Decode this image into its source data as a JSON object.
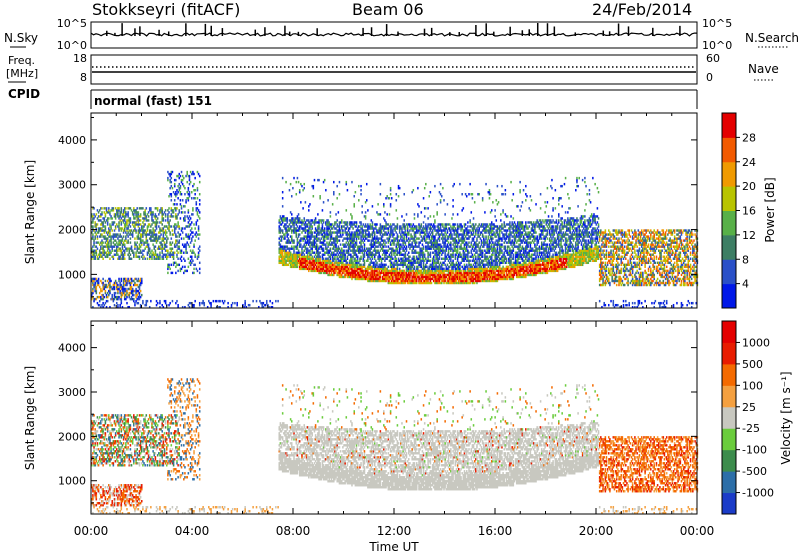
{
  "header": {
    "station": "Stokkseyri (fitACF)",
    "beam": "Beam 06",
    "date": "24/Feb/2014"
  },
  "strip_labels": {
    "nsky": "N.Sky",
    "nsearch": "N.Search",
    "freq_line1": "Freq.",
    "freq_line2": "[MHz]",
    "nave": "Nave",
    "cpid": "CPID",
    "cpid_value": "normal (fast) 151",
    "nsky_ticks": [
      "10^5",
      "10^0"
    ],
    "nsearch_ticks": [
      "10^5",
      "10^0"
    ],
    "freq_ticks": [
      "18",
      "8"
    ],
    "nave_ticks": [
      "60",
      "0"
    ]
  },
  "chart_data": [
    {
      "name": "power",
      "type": "heatmap",
      "ylabel": "Slant Range [km]",
      "ylim": [
        250,
        4600
      ],
      "yticks": [
        1000,
        2000,
        3000,
        4000
      ],
      "xlim": [
        0,
        24
      ],
      "colorbar": {
        "label": "Power [dB]",
        "ticks": [
          4,
          8,
          12,
          16,
          20,
          24,
          28
        ],
        "colors": [
          "#0018e8",
          "#2a50c8",
          "#3d7e64",
          "#58b048",
          "#b8c400",
          "#f09a00",
          "#f25a00",
          "#e40000"
        ]
      }
    },
    {
      "name": "velocity",
      "type": "heatmap",
      "ylabel": "Slant Range [km]",
      "ylim": [
        250,
        4600
      ],
      "yticks": [
        1000,
        2000,
        3000,
        4000
      ],
      "xlim": [
        0,
        24
      ],
      "xlabel": "Time UT",
      "xticks": [
        "00:00",
        "04:00",
        "08:00",
        "12:00",
        "16:00",
        "20:00",
        "00:00"
      ],
      "colorbar": {
        "label": "Velocity [m s⁻¹]",
        "ticks": [
          "1000",
          "500",
          "100",
          "25",
          "-25",
          "-100",
          "-500",
          "-1000"
        ],
        "colors": [
          "#1b3cc8",
          "#2c6ea8",
          "#3c8c4c",
          "#6acc3c",
          "#c8c8c0",
          "#f4a040",
          "#f46a00",
          "#e81c00",
          "#e40000"
        ]
      }
    }
  ]
}
